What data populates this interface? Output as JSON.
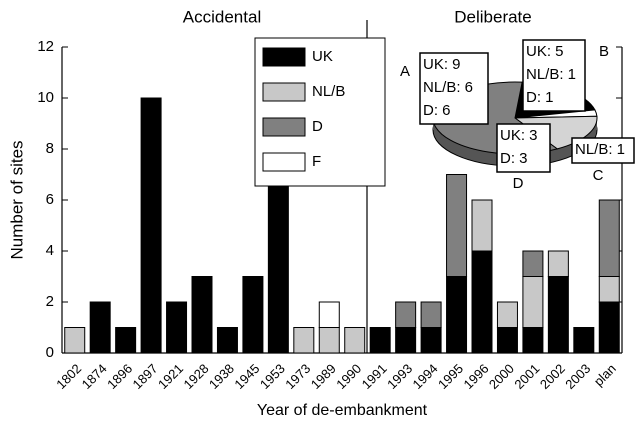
{
  "chart_data": [
    {
      "type": "bar",
      "stacked": true,
      "annotations": [
        "Accidental",
        "Deliberate"
      ],
      "x_label": "Year of de-embankment",
      "y_label": "Number of sites",
      "categories": [
        "1802",
        "1874",
        "1896",
        "1897",
        "1921",
        "1928",
        "1938",
        "1945",
        "1953",
        "1973",
        "1989",
        "1990",
        "1991",
        "1993",
        "1994",
        "1995",
        "1996",
        "2000",
        "2001",
        "2002",
        "2003",
        "plan"
      ],
      "series": [
        {
          "name": "UK",
          "color": "#000000",
          "values": [
            0,
            2,
            1,
            10,
            2,
            3,
            1,
            3,
            8,
            0,
            0,
            0,
            1,
            1,
            1,
            3,
            4,
            1,
            1,
            3,
            1,
            2
          ]
        },
        {
          "name": "NL/B",
          "color": "#c8c8c8",
          "values": [
            1,
            0,
            0,
            0,
            0,
            0,
            0,
            0,
            0,
            1,
            1,
            1,
            0,
            0,
            0,
            0,
            2,
            1,
            2,
            1,
            0,
            1
          ]
        },
        {
          "name": "D",
          "color": "#808080",
          "values": [
            0,
            0,
            0,
            0,
            0,
            0,
            0,
            0,
            0,
            0,
            0,
            0,
            0,
            1,
            1,
            4,
            0,
            0,
            1,
            0,
            0,
            3
          ]
        },
        {
          "name": "F",
          "color": "#ffffff",
          "values": [
            0,
            0,
            0,
            0,
            0,
            0,
            0,
            0,
            0,
            0,
            1,
            0,
            0,
            0,
            0,
            0,
            0,
            0,
            0,
            0,
            0,
            0
          ]
        }
      ],
      "ylim": [
        0,
        12
      ],
      "yticks": [
        0,
        2,
        4,
        6,
        8,
        10,
        12
      ],
      "legend": "upper center"
    },
    {
      "type": "pie",
      "slices": [
        {
          "label": "B",
          "color": "#000000",
          "values": [
            5,
            1,
            1
          ],
          "value_labels": [
            "UK: 5",
            "NL/B: 1",
            "D: 1"
          ]
        },
        {
          "label": "C",
          "color": "#ffffff",
          "values": [
            1
          ],
          "value_labels": [
            "NL/B: 1"
          ]
        },
        {
          "label": "D",
          "color": "#d4d4d4",
          "values": [
            3,
            3
          ],
          "value_labels": [
            "UK: 3",
            "D: 3"
          ]
        },
        {
          "label": "A",
          "color": "#808080",
          "values": [
            9,
            6,
            6
          ],
          "value_labels": [
            "UK: 9",
            "NL/B: 6",
            "D: 6"
          ]
        }
      ]
    }
  ]
}
